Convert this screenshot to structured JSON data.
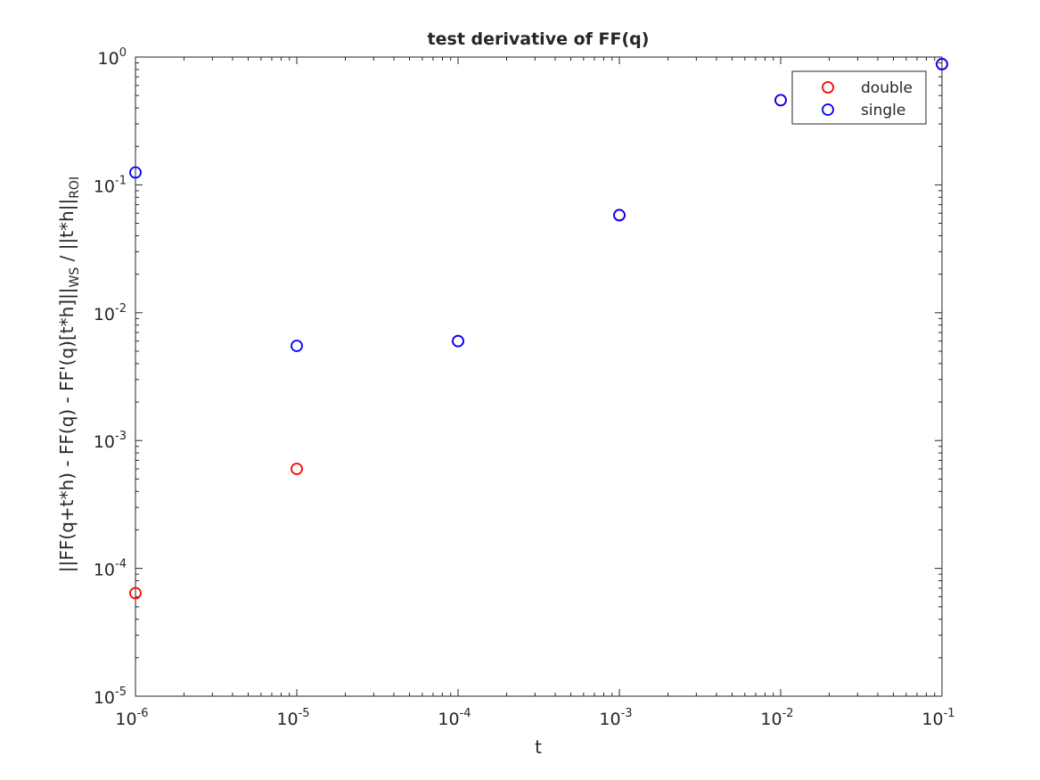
{
  "chart_data": {
    "type": "scatter",
    "title": "test derivative of FF(q)",
    "xlabel": "t",
    "ylabel": {
      "main": "||FF(q+t*h) - FF(q) - FF'(q)[t*h]||",
      "sub1": "WS",
      "mid": " / ||t*h||",
      "sub2": "ROI"
    },
    "xscale": "log",
    "yscale": "log",
    "xlim": [
      1e-06,
      0.1
    ],
    "ylim": [
      1e-05,
      1
    ],
    "grid": false,
    "legend_position": "top-right",
    "xticks": [
      {
        "base": "10",
        "exp": "-6"
      },
      {
        "base": "10",
        "exp": "-5"
      },
      {
        "base": "10",
        "exp": "-4"
      },
      {
        "base": "10",
        "exp": "-3"
      },
      {
        "base": "10",
        "exp": "-2"
      },
      {
        "base": "10",
        "exp": "-1"
      }
    ],
    "yticks": [
      {
        "base": "10",
        "exp": "0"
      },
      {
        "base": "10",
        "exp": "-1"
      },
      {
        "base": "10",
        "exp": "-2"
      },
      {
        "base": "10",
        "exp": "-3"
      },
      {
        "base": "10",
        "exp": "-4"
      },
      {
        "base": "10",
        "exp": "-5"
      }
    ],
    "series": [
      {
        "name": "double",
        "color": "#ff0000",
        "marker": "circle-open",
        "x": [
          1e-06,
          1e-05,
          0.0001,
          0.001,
          0.01,
          0.1
        ],
        "y": [
          6.4e-05,
          0.0006,
          0.006,
          0.058,
          0.46,
          0.88
        ]
      },
      {
        "name": "single",
        "color": "#0000ff",
        "marker": "circle-open",
        "x": [
          1e-06,
          1e-05,
          0.0001,
          0.001,
          0.01,
          0.1
        ],
        "y": [
          0.125,
          0.0055,
          0.006,
          0.058,
          0.46,
          0.88
        ]
      }
    ]
  }
}
